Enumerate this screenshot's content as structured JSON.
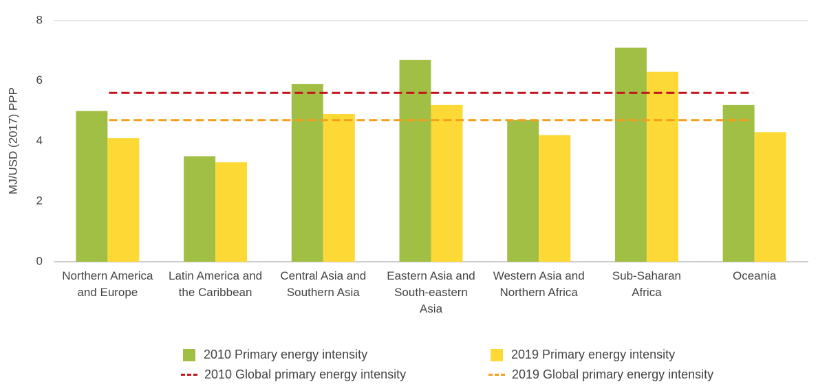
{
  "chart_data": {
    "type": "bar",
    "y_label": "MJ/USD (2017) PPP",
    "categories": [
      "Northern America and Europe",
      "Latin America and the Caribbean",
      "Central Asia and Southern Asia",
      "Eastern Asia and South-eastern Asia",
      "Western Asia and Northern Africa",
      "Sub-Saharan Africa",
      "Oceania"
    ],
    "series": [
      {
        "name": "2010 Primary energy intensity",
        "color": "#a2bf45",
        "values": [
          5.0,
          3.5,
          5.9,
          6.7,
          4.7,
          7.1,
          5.2
        ]
      },
      {
        "name": "2019 Primary energy intensity",
        "color": "#fdd935",
        "values": [
          4.1,
          3.3,
          4.9,
          5.2,
          4.2,
          6.3,
          4.3
        ]
      }
    ],
    "reference_lines": [
      {
        "name": "2010 Global primary energy intensity",
        "color": "#c0141b",
        "value": 5.6
      },
      {
        "name": "2019 Global primary energy intensity",
        "color": "#f59d1c",
        "value": 4.7
      }
    ],
    "ylim": [
      0,
      8
    ],
    "yticks": [
      0,
      2,
      4,
      6,
      8
    ],
    "grid": false
  }
}
